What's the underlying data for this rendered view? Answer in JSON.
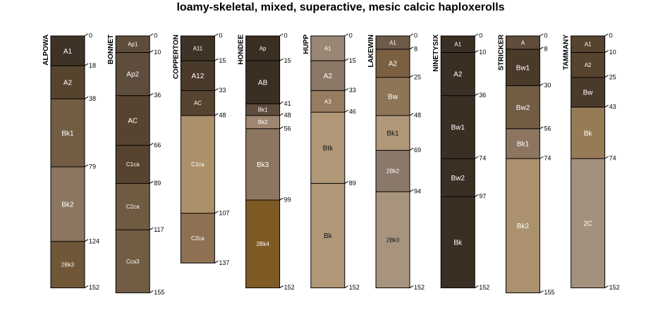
{
  "chart_data": {
    "type": "soil-profile-sketch",
    "title": "loamy-skeletal, mixed, superactive, mesic calcic haploxerolls",
    "depth_units": "cm",
    "profiles": [
      {
        "name": "ALPOWA",
        "horizons": [
          {
            "name": "A1",
            "top": 0,
            "bottom": 18,
            "color": "#3f3226"
          },
          {
            "name": "A2",
            "top": 18,
            "bottom": 38,
            "color": "#57442f"
          },
          {
            "name": "Bk1",
            "top": 38,
            "bottom": 79,
            "color": "#725c44"
          },
          {
            "name": "Bk2",
            "top": 79,
            "bottom": 124,
            "color": "#8c7660"
          },
          {
            "name": "2Bk3",
            "top": 124,
            "bottom": 152,
            "color": "#6f5737"
          }
        ]
      },
      {
        "name": "BONNET",
        "horizons": [
          {
            "name": "Ap1",
            "top": 0,
            "bottom": 10,
            "color": "#5e4c3c"
          },
          {
            "name": "Ap2",
            "top": 10,
            "bottom": 36,
            "color": "#5e4c3c"
          },
          {
            "name": "AC",
            "top": 36,
            "bottom": 66,
            "color": "#574430"
          },
          {
            "name": "C1ca",
            "top": 66,
            "bottom": 89,
            "color": "#574430"
          },
          {
            "name": "C2ca",
            "top": 89,
            "bottom": 117,
            "color": "#6f5a42"
          },
          {
            "name": "Cca3",
            "top": 117,
            "bottom": 155,
            "color": "#725c44"
          }
        ]
      },
      {
        "name": "COPPERTON",
        "horizons": [
          {
            "name": "A11",
            "top": 0,
            "bottom": 15,
            "color": "#3f3226"
          },
          {
            "name": "A12",
            "top": 15,
            "bottom": 33,
            "color": "#4a3a2a"
          },
          {
            "name": "AC",
            "top": 33,
            "bottom": 48,
            "color": "#574430"
          },
          {
            "name": "C1ca",
            "top": 48,
            "bottom": 107,
            "color": "#ab906a"
          },
          {
            "name": "C2ca",
            "top": 107,
            "bottom": 137,
            "color": "#8e7152"
          }
        ]
      },
      {
        "name": "HONDEE",
        "horizons": [
          {
            "name": "Ap",
            "top": 0,
            "bottom": 15,
            "color": "#3b2f24"
          },
          {
            "name": "AB",
            "top": 15,
            "bottom": 41,
            "color": "#3b2f24"
          },
          {
            "name": "Bk1",
            "top": 41,
            "bottom": 48,
            "color": "#5e4c3c"
          },
          {
            "name": "Bk2",
            "top": 48,
            "bottom": 56,
            "color": "#9e8670"
          },
          {
            "name": "Bk3",
            "top": 56,
            "bottom": 99,
            "color": "#8c7660"
          },
          {
            "name": "2Bk4",
            "top": 99,
            "bottom": 152,
            "color": "#7f5a24"
          }
        ]
      },
      {
        "name": "HUPP",
        "horizons": [
          {
            "name": "A1",
            "top": 0,
            "bottom": 15,
            "color": "#9a8674"
          },
          {
            "name": "A2",
            "top": 15,
            "bottom": 33,
            "color": "#8c7866"
          },
          {
            "name": "A3",
            "top": 33,
            "bottom": 46,
            "color": "#977c61"
          },
          {
            "name": "Btk",
            "top": 46,
            "bottom": 89,
            "color": "#b09879"
          },
          {
            "name": "Bk",
            "top": 89,
            "bottom": 152,
            "color": "#b09879"
          }
        ]
      },
      {
        "name": "LAKEWIN",
        "horizons": [
          {
            "name": "A1",
            "top": 0,
            "bottom": 8,
            "color": "#6e5a48"
          },
          {
            "name": "A2",
            "top": 8,
            "bottom": 25,
            "color": "#7a6040"
          },
          {
            "name": "Bw",
            "top": 25,
            "bottom": 48,
            "color": "#8f7558"
          },
          {
            "name": "Bk1",
            "top": 48,
            "bottom": 69,
            "color": "#b09879"
          },
          {
            "name": "2Bk2",
            "top": 69,
            "bottom": 94,
            "color": "#8a7868"
          },
          {
            "name": "2Bk3",
            "top": 94,
            "bottom": 152,
            "color": "#a8947e"
          }
        ]
      },
      {
        "name": "NINETYSIX",
        "horizons": [
          {
            "name": "A1",
            "top": 0,
            "bottom": 10,
            "color": "#3b2f24"
          },
          {
            "name": "A2",
            "top": 10,
            "bottom": 36,
            "color": "#3b2f24"
          },
          {
            "name": "Bw1",
            "top": 36,
            "bottom": 74,
            "color": "#3b2f24"
          },
          {
            "name": "Bw2",
            "top": 74,
            "bottom": 97,
            "color": "#3b2f24"
          },
          {
            "name": "Bk",
            "top": 97,
            "bottom": 152,
            "color": "#3b2f24"
          }
        ]
      },
      {
        "name": "STRICKER",
        "horizons": [
          {
            "name": "A",
            "top": 0,
            "bottom": 8,
            "color": "#5e4c3c"
          },
          {
            "name": "Bw1",
            "top": 8,
            "bottom": 30,
            "color": "#4a3a2a"
          },
          {
            "name": "Bw2",
            "top": 30,
            "bottom": 56,
            "color": "#725c44"
          },
          {
            "name": "Bk1",
            "top": 56,
            "bottom": 74,
            "color": "#8c7660"
          },
          {
            "name": "Bk2",
            "top": 74,
            "bottom": 155,
            "color": "#ab916e"
          }
        ]
      },
      {
        "name": "TAMMANY",
        "horizons": [
          {
            "name": "A1",
            "top": 0,
            "bottom": 10,
            "color": "#57442f"
          },
          {
            "name": "A2",
            "top": 10,
            "bottom": 25,
            "color": "#57442f"
          },
          {
            "name": "Bw",
            "top": 25,
            "bottom": 43,
            "color": "#4a3a2a"
          },
          {
            "name": "Bk",
            "top": 43,
            "bottom": 74,
            "color": "#977b56"
          },
          {
            "name": "2C",
            "top": 74,
            "bottom": 152,
            "color": "#a3917e"
          }
        ]
      }
    ]
  }
}
